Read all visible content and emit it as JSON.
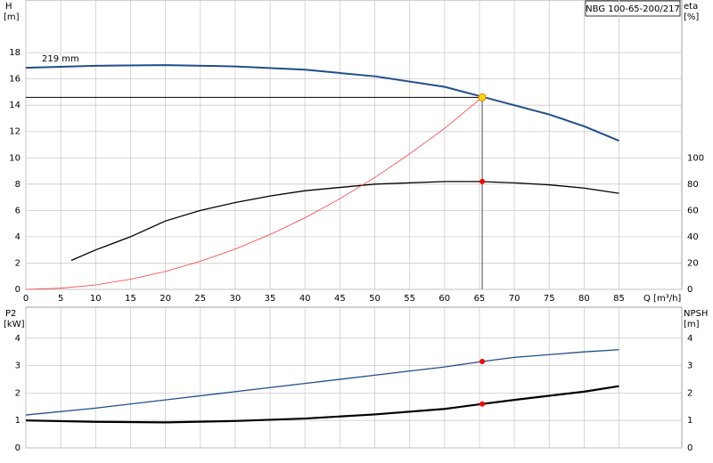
{
  "chart_data": [
    {
      "type": "line",
      "title": "NBG 100-65-200/217",
      "ylabel": "H",
      "yunit": "[m]",
      "y2label": "eta",
      "y2unit": "[%]",
      "xlabel": "Q [m³/h]",
      "xlim": [
        0,
        94
      ],
      "xticks": [
        0,
        5,
        10,
        15,
        20,
        25,
        30,
        35,
        40,
        45,
        50,
        55,
        60,
        65,
        70,
        75,
        80,
        85
      ],
      "ylim": [
        0,
        22
      ],
      "yticks": [
        0,
        2,
        4,
        6,
        8,
        10,
        12,
        14,
        16,
        18
      ],
      "y2lim": [
        0,
        220
      ],
      "y2ticks": [
        0,
        20,
        40,
        60,
        80,
        100
      ],
      "grid": true,
      "series": [
        {
          "name": "219 mm",
          "color": "#1f4e8c",
          "width": 2,
          "x": [
            0,
            10,
            20,
            30,
            40,
            50,
            60,
            65,
            70,
            75,
            80,
            85
          ],
          "values": [
            16.85,
            17.0,
            17.05,
            16.95,
            16.7,
            16.2,
            15.4,
            14.7,
            14.0,
            13.3,
            12.4,
            11.3
          ]
        },
        {
          "color": "#000000",
          "width": 1.3,
          "axis": "y2",
          "x": [
            6.5,
            10,
            15,
            20,
            25,
            30,
            35,
            40,
            50,
            60,
            65,
            70,
            75,
            80,
            85
          ],
          "values": [
            22,
            30,
            40,
            52,
            60,
            66,
            71,
            75,
            80,
            82,
            82,
            81,
            79.5,
            77,
            73
          ],
          "marker": {
            "x": 65.4,
            "y": 82,
            "color": "#ff0000"
          }
        },
        {
          "color": "#ff3b3b",
          "width": 0.8,
          "x": [
            0,
            5,
            10,
            15,
            20,
            25,
            30,
            35,
            40,
            45,
            50,
            55,
            60,
            65.4
          ],
          "values": [
            0,
            0.09,
            0.34,
            0.77,
            1.36,
            2.13,
            3.06,
            4.17,
            5.44,
            6.89,
            8.5,
            10.3,
            12.24,
            14.6
          ]
        }
      ],
      "operating_point": {
        "x": 65.4,
        "y": 14.6,
        "color": "#ffd700"
      }
    },
    {
      "type": "line",
      "ylabel": "P2",
      "yunit": "[kW]",
      "y2label": "NPSH",
      "y2unit": "[m]",
      "xlim": [
        0,
        94
      ],
      "xticks": [
        0,
        5,
        10,
        15,
        20,
        25,
        30,
        35,
        40,
        45,
        50,
        55,
        60,
        65,
        70,
        75,
        80,
        85
      ],
      "ylim": [
        0,
        5.13
      ],
      "yticks": [
        0,
        1,
        2,
        3,
        4
      ],
      "y2lim": [
        0,
        5.13
      ],
      "y2ticks": [
        0,
        1,
        2,
        3,
        4
      ],
      "grid": true,
      "series": [
        {
          "color": "#1f4e8c",
          "width": 1.3,
          "x": [
            0,
            10,
            20,
            30,
            40,
            50,
            60,
            65.4,
            70,
            80,
            85
          ],
          "values": [
            1.2,
            1.45,
            1.75,
            2.05,
            2.35,
            2.65,
            2.95,
            3.15,
            3.3,
            3.5,
            3.58
          ],
          "marker": {
            "x": 65.4,
            "y": 3.15,
            "color": "#ff0000"
          }
        },
        {
          "color": "#000000",
          "width": 2.2,
          "axis": "y2",
          "x": [
            0,
            10,
            20,
            30,
            40,
            50,
            60,
            65.4,
            70,
            80,
            85
          ],
          "values": [
            1.0,
            0.95,
            0.93,
            0.98,
            1.07,
            1.22,
            1.42,
            1.6,
            1.75,
            2.05,
            2.25
          ],
          "marker": {
            "x": 65.4,
            "y": 1.6,
            "color": "#ff0000"
          }
        }
      ]
    }
  ]
}
